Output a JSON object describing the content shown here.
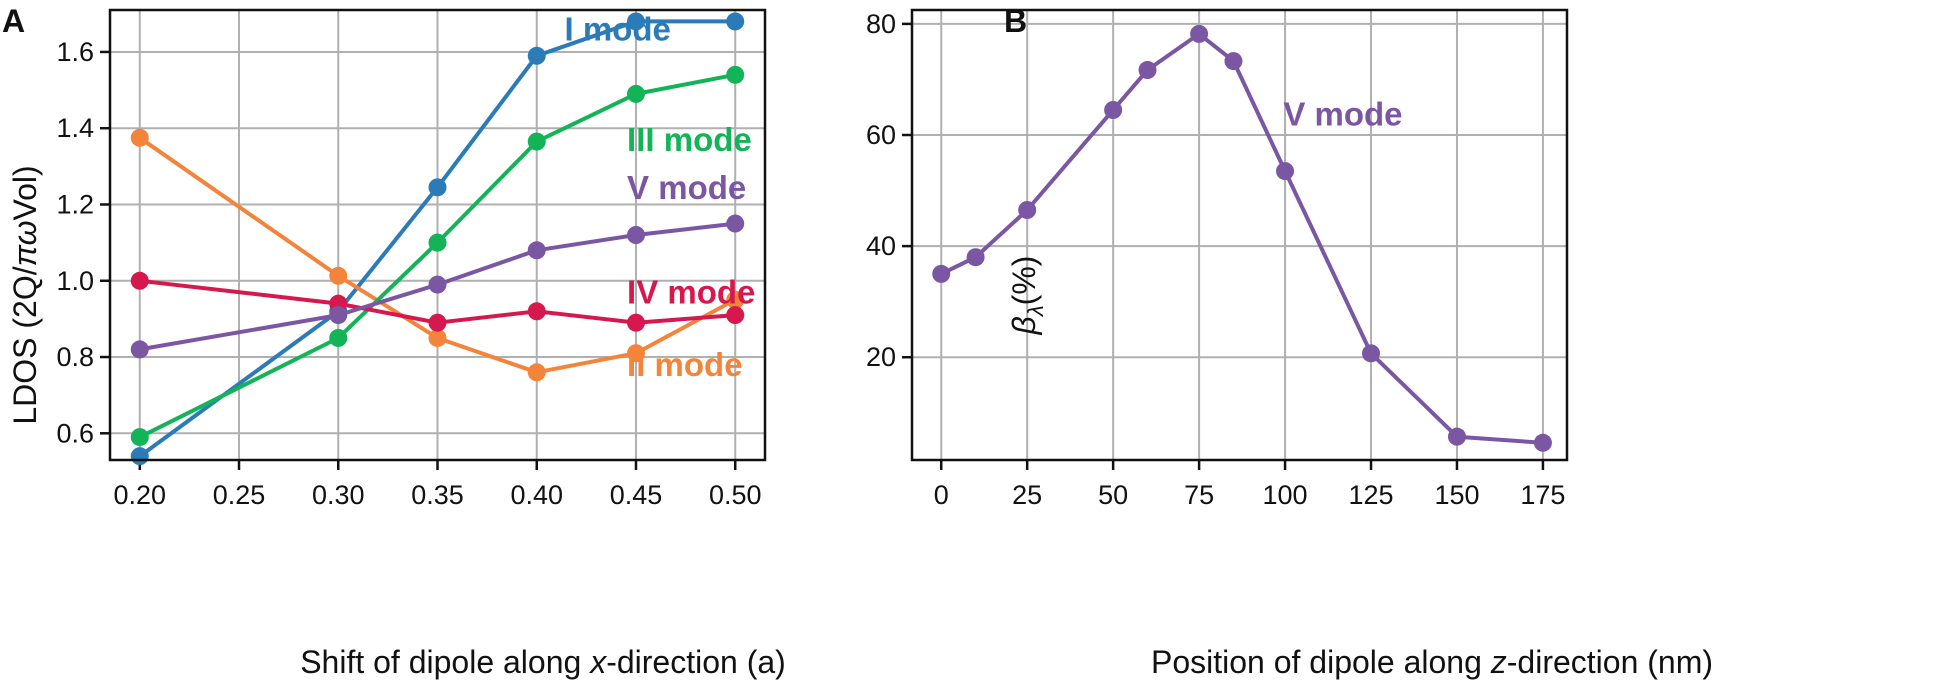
{
  "chart_data": [
    {
      "type": "line",
      "panel_label": "A",
      "title": "",
      "xlabel_parts": [
        "Shift of dipole along ",
        "x",
        "-direction (a)"
      ],
      "ylabel_parts": [
        "LDOS (2Q/",
        "πω",
        "Vol)"
      ],
      "xlim": [
        0.185,
        0.515
      ],
      "ylim": [
        0.53,
        1.71
      ],
      "xticks": [
        0.2,
        0.25,
        0.3,
        0.35,
        0.4,
        0.45,
        0.5
      ],
      "xtick_labels": [
        "0.20",
        "0.25",
        "0.30",
        "0.35",
        "0.40",
        "0.45",
        "0.50"
      ],
      "yticks": [
        0.6,
        0.8,
        1.0,
        1.2,
        1.4,
        1.6
      ],
      "ytick_labels": [
        "0.6",
        "0.8",
        "1.0",
        "1.2",
        "1.4",
        "1.6"
      ],
      "grid": true,
      "series": [
        {
          "name": "I mode",
          "color": "#2a7bb8",
          "x": [
            0.2,
            0.3,
            0.35,
            0.4,
            0.45,
            0.5
          ],
          "y": [
            0.54,
            0.92,
            1.245,
            1.59,
            1.68,
            1.68
          ],
          "label_at": [
            0.414,
            1.63
          ]
        },
        {
          "name": "II mode",
          "color": "#f4843a",
          "x": [
            0.2,
            0.3,
            0.35,
            0.4,
            0.45,
            0.5
          ],
          "y": [
            1.375,
            1.013,
            0.85,
            0.76,
            0.81,
            0.95
          ],
          "label_at": [
            0.4455,
            0.75
          ]
        },
        {
          "name": "III mode",
          "color": "#12b457",
          "x": [
            0.2,
            0.3,
            0.35,
            0.4,
            0.45,
            0.5
          ],
          "y": [
            0.59,
            0.85,
            1.1,
            1.365,
            1.49,
            1.54
          ],
          "label_at": [
            0.4455,
            1.34
          ]
        },
        {
          "name": "IV mode",
          "color": "#d6184f",
          "x": [
            0.2,
            0.3,
            0.35,
            0.4,
            0.45,
            0.5
          ],
          "y": [
            1.0,
            0.94,
            0.89,
            0.92,
            0.89,
            0.91
          ],
          "label_at": [
            0.4455,
            0.94
          ]
        },
        {
          "name": "V mode",
          "color": "#7b56a3",
          "x": [
            0.2,
            0.3,
            0.35,
            0.4,
            0.45,
            0.5
          ],
          "y": [
            0.82,
            0.91,
            0.99,
            1.08,
            1.12,
            1.15
          ],
          "label_at": [
            0.4455,
            1.215
          ]
        }
      ]
    },
    {
      "type": "line",
      "panel_label": "B",
      "title": "",
      "xlabel_parts": [
        "Position of dipole along ",
        "z",
        "-direction (nm)"
      ],
      "ylabel_parts": [
        "β",
        "λ",
        "(%)"
      ],
      "xlim": [
        -8.5,
        182
      ],
      "ylim": [
        1.5,
        82.5
      ],
      "xticks": [
        0,
        25,
        50,
        75,
        100,
        125,
        150,
        175
      ],
      "xtick_labels": [
        "0",
        "25",
        "50",
        "75",
        "100",
        "125",
        "150",
        "175"
      ],
      "yticks": [
        20,
        40,
        60,
        80
      ],
      "ytick_labels": [
        "20",
        "40",
        "60",
        "80"
      ],
      "grid": true,
      "series": [
        {
          "name": "V mode",
          "color": "#7b56a3",
          "x": [
            0,
            10,
            25,
            50,
            60,
            75,
            85,
            100,
            125,
            150,
            175
          ],
          "y": [
            35.0,
            38.0,
            46.5,
            64.5,
            71.7,
            78.2,
            73.3,
            53.5,
            20.7,
            5.7,
            4.6
          ],
          "label_at": [
            99.5,
            61.7
          ]
        }
      ]
    }
  ]
}
